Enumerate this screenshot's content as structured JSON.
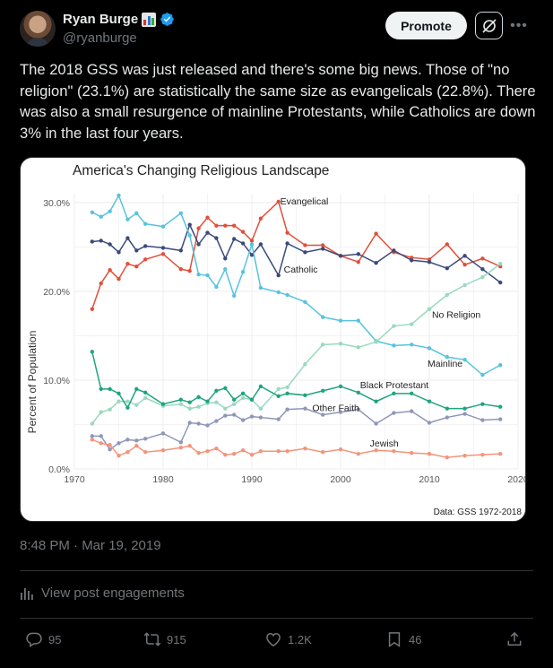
{
  "author": {
    "name": "Ryan Burge",
    "handle": "@ryanburge",
    "emoji_icon": "bar-chart-emoji",
    "verified_icon": "verified-badge-icon"
  },
  "header": {
    "promote_label": "Promote",
    "grok_icon": "grok-icon",
    "more_icon": "more-icon"
  },
  "tweet": {
    "text": "The 2018 GSS was just released and there's some big news. Those of \"no religion\" (23.1%) are statistically the same size as evangelicals (22.8%). There was also a small resurgence of mainline Protestants, while Catholics are down 3% in the last four years."
  },
  "meta": {
    "timestamp": "8:48 PM · Mar 19, 2019"
  },
  "engagements": {
    "label": "View post engagements",
    "icon": "analytics-icon"
  },
  "actions": {
    "replies": "95",
    "reposts": "915",
    "likes": "1.2K",
    "bookmarks": "46"
  },
  "chart_data": {
    "type": "line",
    "title": "America's Changing Religious Landscape",
    "ylabel": "Percent of Population",
    "xlabel": "",
    "caption": "Data: GSS 1972-2018",
    "xlim": [
      1970,
      2020
    ],
    "ylim": [
      0,
      31
    ],
    "x_ticks": [
      "1970",
      "1980",
      "1990",
      "2000",
      "2010",
      "2020"
    ],
    "x_tick_values": [
      1970,
      1980,
      1990,
      2000,
      2010,
      2020
    ],
    "y_ticks": [
      "0.0%",
      "10.0%",
      "20.0%",
      "30.0%"
    ],
    "y_tick_values": [
      0,
      10,
      20,
      30
    ],
    "grid": true,
    "series": [
      {
        "name": "Evangelical",
        "color": "#e0503c",
        "x": [
          1972,
          1973,
          1974,
          1975,
          1976,
          1977,
          1978,
          1980,
          1982,
          1983,
          1984,
          1985,
          1986,
          1987,
          1988,
          1989,
          1990,
          1991,
          1993,
          1994,
          1996,
          1998,
          2000,
          2002,
          2004,
          2006,
          2008,
          2010,
          2012,
          2014,
          2016,
          2018
        ],
        "y": [
          18.0,
          20.9,
          22.4,
          21.4,
          23.1,
          22.8,
          23.6,
          24.2,
          22.5,
          22.3,
          27.1,
          28.3,
          27.4,
          27.4,
          27.4,
          26.7,
          25.7,
          28.2,
          30.1,
          26.6,
          25.2,
          25.2,
          24.0,
          23.3,
          26.5,
          24.4,
          23.8,
          23.6,
          25.3,
          23.0,
          23.7,
          22.8
        ],
        "label": "Evangelical",
        "label_x": 1993.2,
        "label_y": 29.8
      },
      {
        "name": "Catholic",
        "color": "#3b4a7a",
        "x": [
          1972,
          1973,
          1974,
          1975,
          1976,
          1977,
          1978,
          1980,
          1982,
          1983,
          1984,
          1985,
          1986,
          1987,
          1988,
          1989,
          1990,
          1991,
          1993,
          1994,
          1996,
          1998,
          2000,
          2002,
          2004,
          2006,
          2008,
          2010,
          2012,
          2014,
          2016,
          2018
        ],
        "y": [
          25.6,
          25.7,
          25.3,
          24.4,
          26.0,
          24.6,
          25.1,
          24.9,
          24.6,
          27.5,
          25.3,
          26.6,
          26.0,
          23.7,
          25.9,
          25.4,
          24.1,
          25.3,
          21.8,
          25.4,
          24.4,
          24.8,
          24.0,
          24.2,
          23.2,
          24.6,
          23.5,
          23.3,
          22.6,
          24.0,
          22.5,
          21.0
        ],
        "label": "Catholic",
        "label_x": 1993.6,
        "label_y": 22.1
      },
      {
        "name": "Mainline",
        "color": "#58c3dc",
        "x": [
          1972,
          1973,
          1974,
          1975,
          1976,
          1977,
          1978,
          1980,
          1982,
          1983,
          1984,
          1985,
          1986,
          1987,
          1988,
          1989,
          1990,
          1991,
          1993,
          1994,
          1996,
          1998,
          2000,
          2002,
          2004,
          2006,
          2008,
          2010,
          2012,
          2014,
          2016,
          2018
        ],
        "y": [
          28.9,
          28.4,
          29.0,
          30.8,
          28.1,
          28.8,
          27.6,
          27.3,
          28.8,
          26.3,
          21.9,
          21.8,
          20.5,
          22.5,
          19.5,
          22.2,
          25.3,
          20.4,
          19.9,
          19.6,
          18.8,
          17.1,
          16.7,
          16.7,
          14.4,
          13.9,
          14.0,
          13.6,
          12.6,
          12.3,
          10.6,
          11.7
        ],
        "label": "Mainline",
        "label_x": 2009.8,
        "label_y": 11.5
      },
      {
        "name": "No Religion",
        "color": "#9ad9bf",
        "x": [
          1972,
          1973,
          1974,
          1975,
          1976,
          1977,
          1978,
          1980,
          1982,
          1983,
          1984,
          1985,
          1986,
          1987,
          1988,
          1989,
          1990,
          1991,
          1993,
          1994,
          1996,
          1998,
          2000,
          2002,
          2004,
          2006,
          2008,
          2010,
          2012,
          2014,
          2016,
          2018
        ],
        "y": [
          5.1,
          6.4,
          6.7,
          7.6,
          7.6,
          7.2,
          8.0,
          7.1,
          7.3,
          6.8,
          7.0,
          7.4,
          7.5,
          6.8,
          7.3,
          8.0,
          7.8,
          6.8,
          9.0,
          9.2,
          11.8,
          14.0,
          14.1,
          13.7,
          14.3,
          16.1,
          16.3,
          18.0,
          19.6,
          20.7,
          21.6,
          23.1
        ],
        "label": "No Religion",
        "label_x": 2010.3,
        "label_y": 17.0
      },
      {
        "name": "Black Protestant",
        "color": "#1fa47f",
        "x": [
          1972,
          1973,
          1974,
          1975,
          1976,
          1977,
          1978,
          1980,
          1982,
          1983,
          1984,
          1985,
          1986,
          1987,
          1988,
          1989,
          1990,
          1991,
          1993,
          1994,
          1996,
          1998,
          2000,
          2002,
          2004,
          2006,
          2008,
          2010,
          2012,
          2014,
          2016,
          2018
        ],
        "y": [
          13.2,
          9.0,
          9.0,
          8.5,
          6.9,
          9.0,
          8.6,
          7.3,
          7.8,
          7.5,
          8.1,
          7.6,
          8.8,
          9.1,
          7.8,
          8.5,
          7.8,
          9.3,
          8.2,
          8.5,
          8.3,
          8.8,
          9.3,
          8.6,
          7.6,
          8.5,
          8.5,
          7.6,
          6.8,
          6.8,
          7.3,
          7.0
        ],
        "label": "Black Protestant",
        "label_x": 2002.2,
        "label_y": 9.1
      },
      {
        "name": "Other Faith",
        "color": "#8f97b8",
        "x": [
          1972,
          1973,
          1974,
          1975,
          1976,
          1977,
          1978,
          1980,
          1982,
          1983,
          1984,
          1985,
          1986,
          1987,
          1988,
          1989,
          1990,
          1991,
          1993,
          1994,
          1996,
          1998,
          2000,
          2002,
          2004,
          2006,
          2008,
          2010,
          2012,
          2014,
          2016,
          2018
        ],
        "y": [
          3.7,
          3.7,
          2.2,
          2.9,
          3.3,
          3.2,
          3.4,
          4.0,
          3.0,
          5.2,
          5.1,
          4.9,
          5.4,
          6.0,
          6.1,
          5.5,
          5.9,
          5.8,
          5.6,
          6.7,
          6.8,
          6.1,
          6.4,
          6.7,
          5.1,
          6.3,
          6.5,
          5.2,
          5.8,
          6.2,
          5.5,
          5.6
        ],
        "label": "Other Faith",
        "label_x": 1996.8,
        "label_y": 6.5
      },
      {
        "name": "Jewish",
        "color": "#f4947a",
        "x": [
          1972,
          1973,
          1974,
          1975,
          1976,
          1977,
          1978,
          1980,
          1982,
          1983,
          1984,
          1985,
          1986,
          1987,
          1988,
          1989,
          1990,
          1991,
          1993,
          1994,
          1996,
          1998,
          2000,
          2002,
          2004,
          2006,
          2008,
          2010,
          2012,
          2014,
          2016,
          2018
        ],
        "y": [
          3.3,
          2.9,
          2.7,
          1.5,
          1.9,
          2.6,
          1.9,
          2.1,
          2.4,
          2.6,
          1.8,
          2.0,
          2.3,
          1.6,
          1.7,
          2.1,
          1.6,
          2.0,
          2.0,
          2.0,
          2.3,
          1.9,
          2.2,
          1.7,
          2.1,
          2.0,
          1.8,
          1.7,
          1.3,
          1.5,
          1.6,
          1.7
        ],
        "label": "Jewish",
        "label_x": 2003.3,
        "label_y": 2.5
      }
    ]
  }
}
